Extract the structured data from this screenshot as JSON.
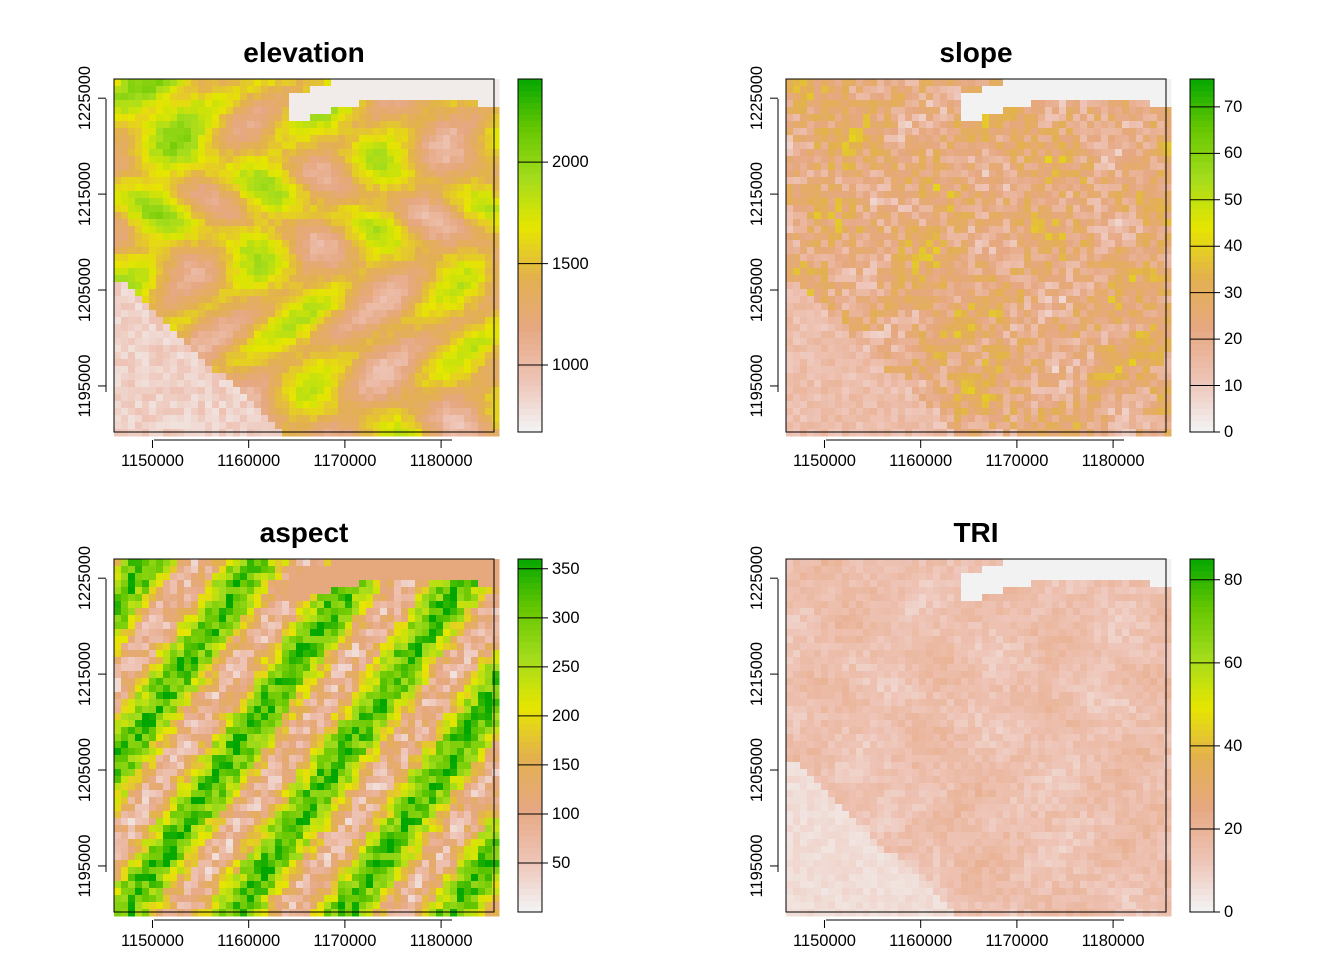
{
  "panels": [
    {
      "title": "elevation",
      "x_ticks": [
        "1150000",
        "1160000",
        "1170000",
        "1180000"
      ],
      "y_ticks": [
        "1195000",
        "1205000",
        "1215000",
        "1225000"
      ],
      "legend": {
        "ticks": [
          "1000",
          "1500",
          "2000"
        ],
        "tick_values": [
          1000,
          1500,
          2000
        ],
        "range": [
          670,
          2410
        ]
      }
    },
    {
      "title": "slope",
      "x_ticks": [
        "1150000",
        "1160000",
        "1170000",
        "1180000"
      ],
      "y_ticks": [
        "1195000",
        "1205000",
        "1215000",
        "1225000"
      ],
      "legend": {
        "ticks": [
          "0",
          "10",
          "20",
          "30",
          "40",
          "50",
          "60",
          "70"
        ],
        "tick_values": [
          0,
          10,
          20,
          30,
          40,
          50,
          60,
          70
        ],
        "range": [
          0,
          76
        ]
      }
    },
    {
      "title": "aspect",
      "x_ticks": [
        "1150000",
        "1160000",
        "1170000",
        "1180000"
      ],
      "y_ticks": [
        "1195000",
        "1205000",
        "1215000",
        "1225000"
      ],
      "legend": {
        "ticks": [
          "50",
          "100",
          "150",
          "200",
          "250",
          "300",
          "350"
        ],
        "tick_values": [
          50,
          100,
          150,
          200,
          250,
          300,
          350
        ],
        "range": [
          0,
          360
        ]
      }
    },
    {
      "title": "TRI",
      "x_ticks": [
        "1150000",
        "1160000",
        "1170000",
        "1180000"
      ],
      "y_ticks": [
        "1195000",
        "1205000",
        "1215000",
        "1225000"
      ],
      "legend": {
        "ticks": [
          "0",
          "20",
          "40",
          "60",
          "80"
        ],
        "tick_values": [
          0,
          20,
          40,
          60,
          80
        ],
        "range": [
          0,
          85
        ]
      }
    }
  ],
  "colors": {
    "ramp": [
      "#f2f2f2",
      "#eec3b5",
      "#e6a882",
      "#e3b050",
      "#e6e600",
      "#a3dc1c",
      "#63c600",
      "#00a600"
    ],
    "valley": "#f2f2f2"
  }
}
